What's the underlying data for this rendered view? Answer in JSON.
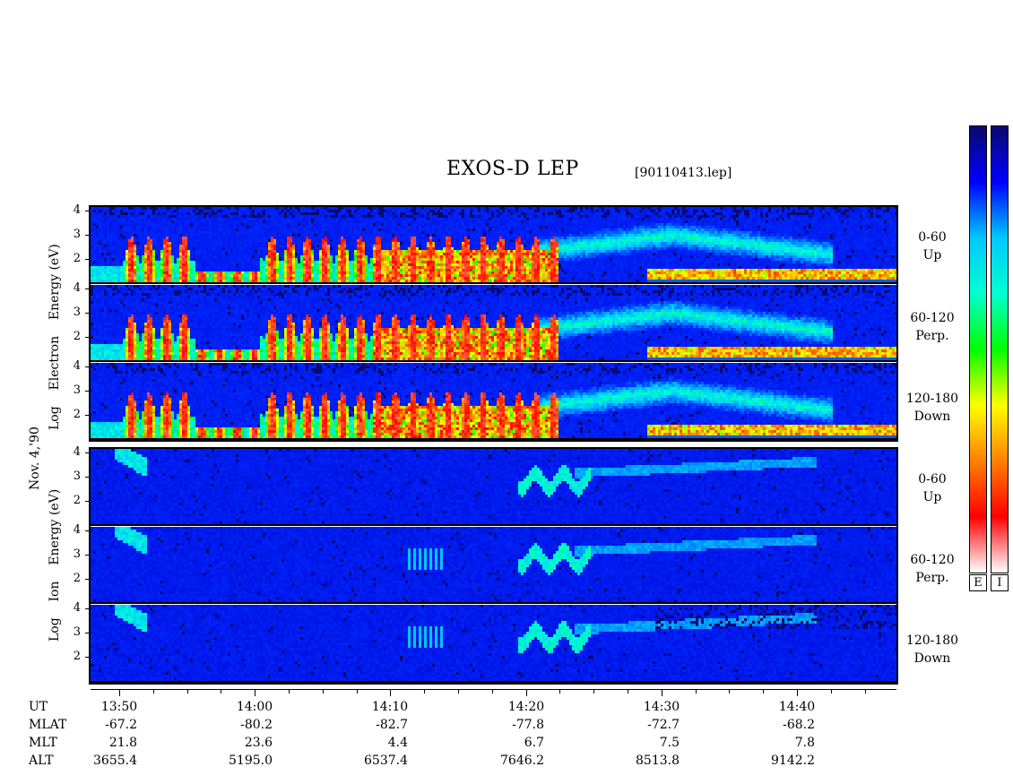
{
  "title": "EXOS-D LEP",
  "filename": "[90110413.lep]",
  "date_label": "Nov. 4,'90",
  "electron_label": [
    "Log",
    "Electron",
    "Energy",
    "(eV)"
  ],
  "ion_label": [
    "Log",
    "Ion",
    "Energy",
    "(eV)"
  ],
  "pitch_labels": [
    {
      "range": "0-60",
      "dir": "Up"
    },
    {
      "range": "60-120",
      "dir": "Perp."
    },
    {
      "range": "120-180",
      "dir": "Down"
    }
  ],
  "colorbar": {
    "left_label": "E",
    "right_label": "I",
    "colors_top_to_bottom": [
      "#0a0a6e",
      "#0000ff",
      "#00c8ff",
      "#00ffd0",
      "#00ff00",
      "#ffff00",
      "#ff8000",
      "#ff0000",
      "#ffffff"
    ]
  },
  "chart_data": {
    "type": "heatmap",
    "panels": [
      {
        "particle": "electron",
        "pitch": "0-60",
        "yticks": [
          "4",
          "3",
          "2"
        ]
      },
      {
        "particle": "electron",
        "pitch": "60-120",
        "yticks": [
          "4",
          "3",
          "2"
        ]
      },
      {
        "particle": "electron",
        "pitch": "120-180",
        "yticks": [
          "4",
          "3",
          "2"
        ]
      },
      {
        "particle": "ion",
        "pitch": "0-60",
        "yticks": [
          "4",
          "3",
          "2"
        ]
      },
      {
        "particle": "ion",
        "pitch": "60-120",
        "yticks": [
          "4",
          "3",
          "2"
        ]
      },
      {
        "particle": "ion",
        "pitch": "120-180",
        "yticks": [
          "4",
          "3",
          "2"
        ]
      }
    ],
    "ylim_log_eV": [
      1,
      4.3
    ],
    "xlim_ut": [
      "13:47",
      "14:48"
    ],
    "ephemeris": {
      "labels": [
        "UT",
        "MLAT",
        "MLT",
        "ALT"
      ],
      "UT": [
        "13:50",
        "14:00",
        "14:10",
        "14:20",
        "14:30",
        "14:40"
      ],
      "MLAT": [
        "-67.2",
        "-80.2",
        "-82.7",
        "-77.8",
        "-72.7",
        "-68.2"
      ],
      "MLT": [
        "21.8",
        "23.6",
        "4.4",
        "6.7",
        "7.5",
        "7.8"
      ],
      "ALT": [
        "3655.4",
        "5195.0",
        "6537.4",
        "7646.2",
        "8513.8",
        "9142.2"
      ]
    }
  }
}
